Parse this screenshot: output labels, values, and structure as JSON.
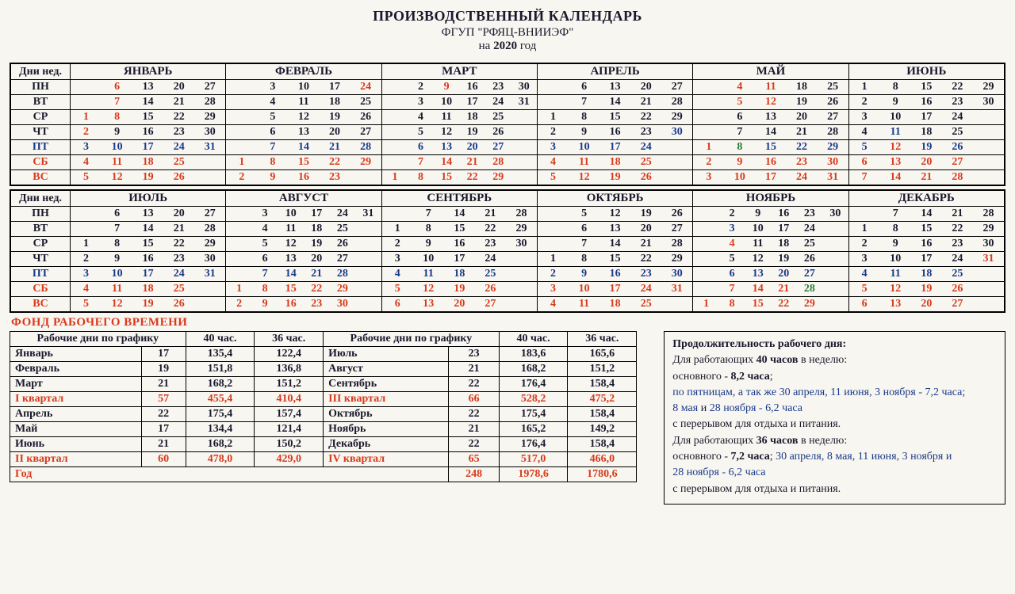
{
  "header": {
    "title": "ПРОИЗВОДСТВЕННЫЙ КАЛЕНДАРЬ",
    "org": "ФГУП \"РФЯЦ-ВНИИЭФ\"",
    "year_prefix": "на ",
    "year": "2020",
    "year_suffix": " год"
  },
  "dow_header": "Дни нед.",
  "dows": [
    "ПН",
    "ВТ",
    "СР",
    "ЧТ",
    "ПТ",
    "СБ",
    "ВС"
  ],
  "dow_colors": [
    "black",
    "black",
    "black",
    "black",
    "blue",
    "red",
    "red"
  ],
  "months_top": [
    "ЯНВАРЬ",
    "ФЕВРАЛЬ",
    "МАРТ",
    "АПРЕЛЬ",
    "МАЙ",
    "ИЮНЬ"
  ],
  "months_bot": [
    "ИЮЛЬ",
    "АВГУСТ",
    "СЕНТЯБРЬ",
    "ОКТЯБРЬ",
    "НОЯБРЬ",
    "ДЕКАБРЬ"
  ],
  "cells_top": [
    [
      [
        "",
        "6 red",
        "13",
        "20",
        "27"
      ],
      [
        "",
        "7 red",
        "14",
        "21",
        "28"
      ],
      [
        "1 red",
        "8 red",
        "15",
        "22",
        "29"
      ],
      [
        "2 red",
        "9",
        "16",
        "23",
        "30"
      ],
      [
        "3 blue",
        "10 blue",
        "17 blue",
        "24 blue",
        "31 blue"
      ],
      [
        "4 red",
        "11 red",
        "18 red",
        "25 red",
        ""
      ],
      [
        "5 red",
        "12 red",
        "19 red",
        "26 red",
        ""
      ]
    ],
    [
      [
        "",
        "3",
        "10",
        "17",
        "24 red"
      ],
      [
        "",
        "4",
        "11",
        "18",
        "25"
      ],
      [
        "",
        "5",
        "12",
        "19",
        "26"
      ],
      [
        "",
        "6",
        "13",
        "20",
        "27"
      ],
      [
        "",
        "7 blue",
        "14 blue",
        "21 blue",
        "28 blue"
      ],
      [
        "1 red",
        "8 red",
        "15 red",
        "22 red",
        "29 red"
      ],
      [
        "2 red",
        "9 red",
        "16 red",
        "23 red",
        ""
      ]
    ],
    [
      [
        "",
        "2",
        "9 red",
        "16",
        "23",
        "30"
      ],
      [
        "",
        "3",
        "10",
        "17",
        "24",
        "31"
      ],
      [
        "",
        "4",
        "11",
        "18",
        "25",
        ""
      ],
      [
        "",
        "5",
        "12",
        "19",
        "26",
        ""
      ],
      [
        "",
        "6 blue",
        "13 blue",
        "20 blue",
        "27 blue",
        ""
      ],
      [
        "",
        "7 red",
        "14 red",
        "21 red",
        "28 red",
        ""
      ],
      [
        "1 red",
        "8 red",
        "15 red",
        "22 red",
        "29 red",
        ""
      ]
    ],
    [
      [
        "",
        "6",
        "13",
        "20",
        "27"
      ],
      [
        "",
        "7",
        "14",
        "21",
        "28"
      ],
      [
        "1",
        "8",
        "15",
        "22",
        "29"
      ],
      [
        "2",
        "9",
        "16",
        "23",
        "30 blue"
      ],
      [
        "3 blue",
        "10 blue",
        "17 blue",
        "24 blue",
        ""
      ],
      [
        "4 red",
        "11 red",
        "18 red",
        "25 red",
        ""
      ],
      [
        "5 red",
        "12 red",
        "19 red",
        "26 red",
        ""
      ]
    ],
    [
      [
        "",
        "4 red",
        "11 red",
        "18",
        "25"
      ],
      [
        "",
        "5 red",
        "12 red",
        "19",
        "26"
      ],
      [
        "",
        "6",
        "13",
        "20",
        "27"
      ],
      [
        "",
        "7",
        "14",
        "21",
        "28"
      ],
      [
        "1 red",
        "8 green",
        "15 blue",
        "22 blue",
        "29 blue"
      ],
      [
        "2 red",
        "9 red",
        "16 red",
        "23 red",
        "30 red"
      ],
      [
        "3 red",
        "10 red",
        "17 red",
        "24 red",
        "31 red"
      ]
    ],
    [
      [
        "1",
        "8",
        "15",
        "22",
        "29"
      ],
      [
        "2",
        "9",
        "16",
        "23",
        "30"
      ],
      [
        "3",
        "10",
        "17",
        "24",
        ""
      ],
      [
        "4",
        "11 blue",
        "18",
        "25",
        ""
      ],
      [
        "5 blue",
        "12 red",
        "19 blue",
        "26 blue",
        ""
      ],
      [
        "6 red",
        "13 red",
        "20 red",
        "27 red",
        ""
      ],
      [
        "7 red",
        "14 red",
        "21 red",
        "28 red",
        ""
      ]
    ]
  ],
  "cells_bot": [
    [
      [
        "",
        "6",
        "13",
        "20",
        "27"
      ],
      [
        "",
        "7",
        "14",
        "21",
        "28"
      ],
      [
        "1",
        "8",
        "15",
        "22",
        "29"
      ],
      [
        "2",
        "9",
        "16",
        "23",
        "30"
      ],
      [
        "3 blue",
        "10 blue",
        "17 blue",
        "24 blue",
        "31 blue"
      ],
      [
        "4 red",
        "11 red",
        "18 red",
        "25 red",
        ""
      ],
      [
        "5 red",
        "12 red",
        "19 red",
        "26 red",
        ""
      ]
    ],
    [
      [
        "",
        "3",
        "10",
        "17",
        "24",
        "31"
      ],
      [
        "",
        "4",
        "11",
        "18",
        "25",
        ""
      ],
      [
        "",
        "5",
        "12",
        "19",
        "26",
        ""
      ],
      [
        "",
        "6",
        "13",
        "20",
        "27",
        ""
      ],
      [
        "",
        "7 blue",
        "14 blue",
        "21 blue",
        "28 blue",
        ""
      ],
      [
        "1 red",
        "8 red",
        "15 red",
        "22 red",
        "29 red",
        ""
      ],
      [
        "2 red",
        "9 red",
        "16 red",
        "23 red",
        "30 red",
        ""
      ]
    ],
    [
      [
        "",
        "7",
        "14",
        "21",
        "28"
      ],
      [
        "1",
        "8",
        "15",
        "22",
        "29"
      ],
      [
        "2",
        "9",
        "16",
        "23",
        "30"
      ],
      [
        "3",
        "10",
        "17",
        "24",
        ""
      ],
      [
        "4 blue",
        "11 blue",
        "18 blue",
        "25 blue",
        ""
      ],
      [
        "5 red",
        "12 red",
        "19 red",
        "26 red",
        ""
      ],
      [
        "6 red",
        "13 red",
        "20 red",
        "27 red",
        ""
      ]
    ],
    [
      [
        "",
        "5",
        "12",
        "19",
        "26"
      ],
      [
        "",
        "6",
        "13",
        "20",
        "27"
      ],
      [
        "",
        "7",
        "14",
        "21",
        "28"
      ],
      [
        "1",
        "8",
        "15",
        "22",
        "29"
      ],
      [
        "2 blue",
        "9 blue",
        "16 blue",
        "23 blue",
        "30 blue"
      ],
      [
        "3 red",
        "10 red",
        "17 red",
        "24 red",
        "31 red"
      ],
      [
        "4 red",
        "11 red",
        "18 red",
        "25 red",
        ""
      ]
    ],
    [
      [
        "",
        "2",
        "9",
        "16",
        "23",
        "30"
      ],
      [
        "",
        "3 blue",
        "10",
        "17",
        "24",
        ""
      ],
      [
        "",
        "4 red",
        "11",
        "18",
        "25",
        ""
      ],
      [
        "",
        "5",
        "12",
        "19",
        "26",
        ""
      ],
      [
        "",
        "6 blue",
        "13 blue",
        "20 blue",
        "27 blue",
        ""
      ],
      [
        "",
        "7 red",
        "14 red",
        "21 red",
        "28 green",
        ""
      ],
      [
        "1 red",
        "8 red",
        "15 red",
        "22 red",
        "29 red",
        ""
      ]
    ],
    [
      [
        "",
        "7",
        "14",
        "21",
        "28"
      ],
      [
        "1",
        "8",
        "15",
        "22",
        "29"
      ],
      [
        "2",
        "9",
        "16",
        "23",
        "30"
      ],
      [
        "3",
        "10",
        "17",
        "24",
        "31 red"
      ],
      [
        "4 blue",
        "11 blue",
        "18 blue",
        "25 blue",
        ""
      ],
      [
        "5 red",
        "12 red",
        "19 red",
        "26 red",
        ""
      ],
      [
        "6 red",
        "13 red",
        "20 red",
        "27 red",
        ""
      ]
    ]
  ],
  "fund": {
    "title": "ФОНД  РАБОЧЕГО  ВРЕМЕНИ",
    "cols": [
      "Рабочие дни по графику",
      "",
      "40 час.",
      "36 час.",
      "Рабочие дни по графику",
      "",
      "40 час.",
      "36 час."
    ],
    "rows": [
      {
        "c": [
          "Январь",
          "17",
          "135,4",
          "122,4",
          "Июль",
          "23",
          "183,6",
          "165,6"
        ]
      },
      {
        "c": [
          "Февраль",
          "19",
          "151,8",
          "136,8",
          "Август",
          "21",
          "168,2",
          "151,2"
        ]
      },
      {
        "c": [
          "Март",
          "21",
          "168,2",
          "151,2",
          "Сентябрь",
          "22",
          "176,4",
          "158,4"
        ]
      },
      {
        "q": true,
        "c": [
          "I квартал",
          "57",
          "455,4",
          "410,4",
          "III квартал",
          "66",
          "528,2",
          "475,2"
        ]
      },
      {
        "c": [
          "Апрель",
          "22",
          "175,4",
          "157,4",
          "Октябрь",
          "22",
          "175,4",
          "158,4"
        ]
      },
      {
        "c": [
          "Май",
          "17",
          "134,4",
          "121,4",
          "Ноябрь",
          "21",
          "165,2",
          "149,2"
        ]
      },
      {
        "c": [
          "Июнь",
          "21",
          "168,2",
          "150,2",
          "Декабрь",
          "22",
          "176,4",
          "158,4"
        ]
      },
      {
        "q": true,
        "c": [
          "II квартал",
          "60",
          "478,0",
          "429,0",
          "IV квартал",
          "65",
          "517,0",
          "466,0"
        ]
      },
      {
        "t": true,
        "c": [
          "Год",
          "",
          "",
          "",
          "",
          "248",
          "1978,6",
          "1780,6"
        ]
      }
    ]
  },
  "notes": {
    "title": "Продолжительность рабочего дня:",
    "l1a": "Для работающих ",
    "l1b": "40 часов",
    "l1c": " в неделю:",
    "l2a": "основного - ",
    "l2b": "8,2 часа",
    "l2c": ";",
    "l3": "по пятницам, а так же 30 апреля, 11 июня, 3 ноября - 7,2 часа;",
    "l4a": "8 мая",
    "l4b": " и ",
    "l4c": "28 ноября",
    "l4d": " - 6,2 часа",
    "l5": "с перерывом для отдыха и питания.",
    "l6a": "Для работающих ",
    "l6b": "36 часов",
    "l6c": " в неделю:",
    "l7a": "основного - ",
    "l7b": "7,2 часа",
    "l7c": ";  ",
    "l7d": "30 апреля, 8 мая, 11 июня, 3 ноября и",
    "l8a": "28 ноября - 6,2 часа",
    "l9": "с перерывом для отдыха и питания."
  }
}
